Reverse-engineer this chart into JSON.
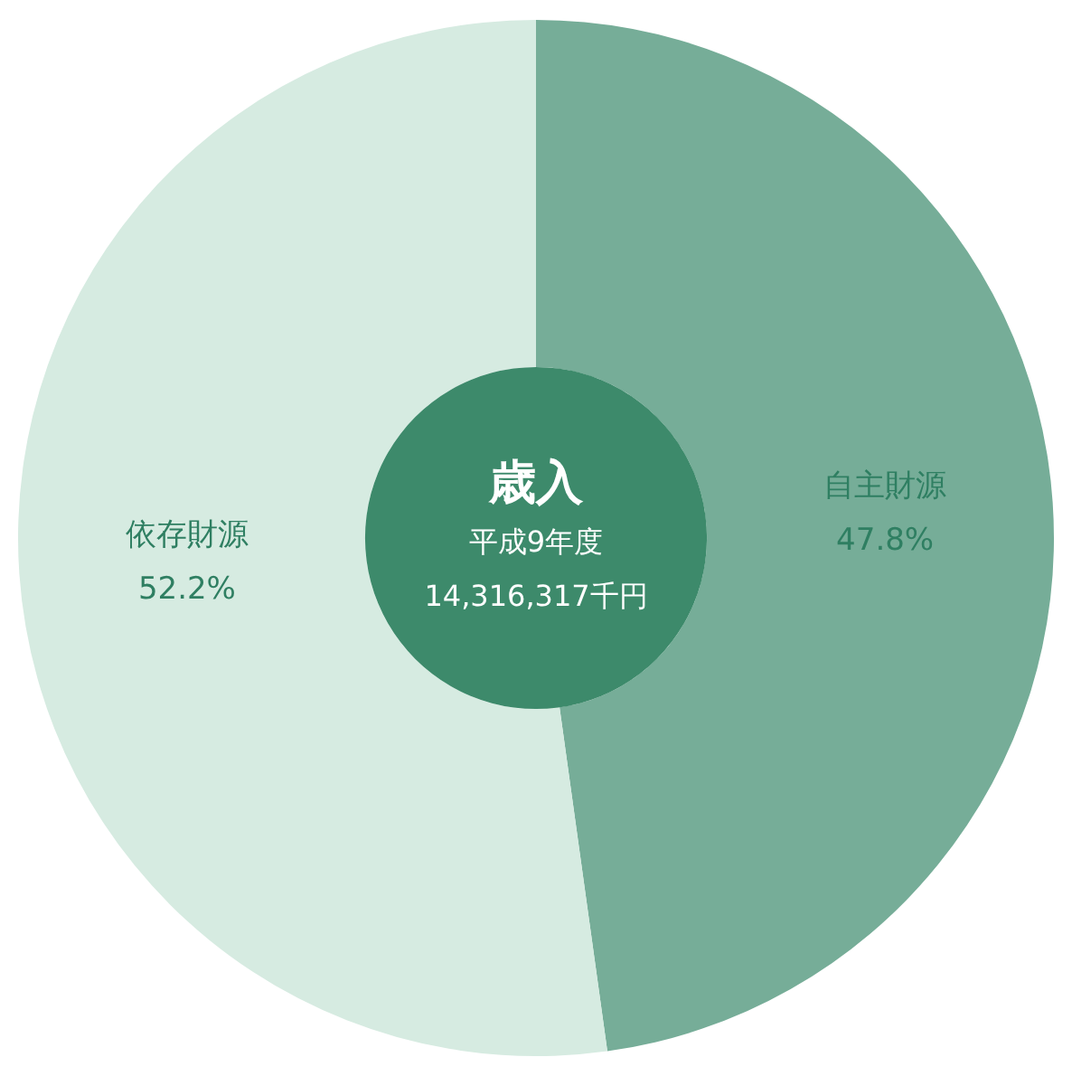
{
  "chart_data": {
    "type": "donut",
    "title": "歳入",
    "annotations": [
      "平成9年度",
      "14,316,317千円"
    ],
    "categories": [
      "自主財源",
      "依存財源"
    ],
    "values": [
      47.8,
      52.2
    ],
    "colors": [
      "#76ad98",
      "#d6ebe1"
    ],
    "value_labels": [
      "47.8%",
      "52.2%"
    ]
  }
}
